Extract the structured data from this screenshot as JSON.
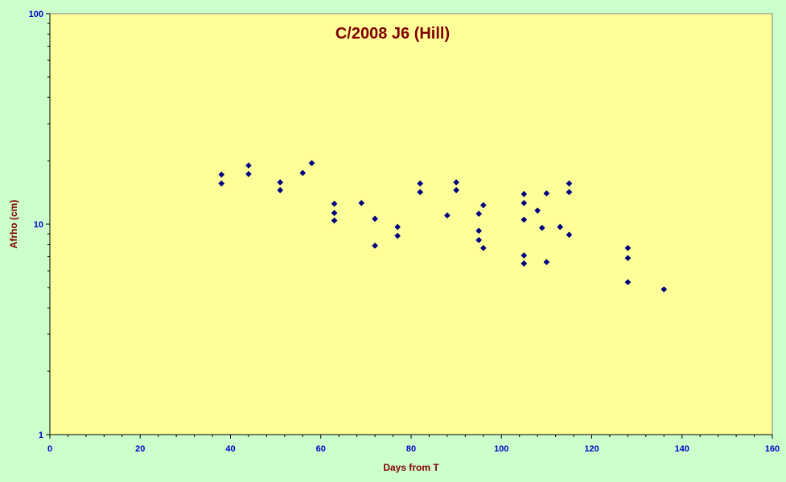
{
  "chart_data": {
    "type": "scatter",
    "title": "C/2008 J6 (Hill)",
    "xlabel": "Days from T",
    "ylabel": "Afrho (cm)",
    "xlim": [
      0,
      160
    ],
    "ylim": [
      1,
      100
    ],
    "yscale": "log",
    "x_ticks": [
      0,
      20,
      40,
      60,
      80,
      100,
      120,
      140,
      160
    ],
    "y_ticks": [
      1,
      10,
      100
    ],
    "x_tick_labels": [
      "0",
      "20",
      "40",
      "60",
      "80",
      "100",
      "120",
      "140",
      "160"
    ],
    "y_tick_labels": [
      "1",
      "10",
      "100"
    ],
    "grid": false,
    "colors": {
      "background": "#ccffcc",
      "plot_area": "#ffff99",
      "marker": "#000080",
      "title": "#800000",
      "tick_labels": "#0000cc"
    },
    "series": [
      {
        "x": [
          38,
          38,
          44,
          44,
          51,
          51,
          56,
          58,
          63,
          63,
          63,
          69,
          72,
          72,
          77,
          77,
          82,
          82,
          88,
          90,
          90,
          95,
          95,
          95,
          96,
          96,
          105,
          105,
          105,
          105,
          105,
          105,
          108,
          109,
          110,
          110,
          113,
          115,
          115,
          115,
          128,
          128,
          128,
          136
        ],
        "y": [
          17.2,
          15.6,
          19.0,
          17.3,
          15.8,
          14.5,
          17.5,
          19.5,
          12.5,
          11.3,
          10.4,
          12.6,
          10.6,
          7.9,
          9.7,
          8.8,
          15.6,
          14.2,
          11.0,
          15.8,
          14.5,
          11.2,
          9.3,
          8.4,
          12.3,
          7.7,
          13.9,
          12.6,
          10.5,
          7.1,
          6.5,
          6.5,
          11.6,
          9.6,
          14.0,
          6.6,
          9.7,
          15.6,
          14.2,
          8.9,
          7.7,
          6.9,
          5.3,
          4.9
        ]
      }
    ]
  }
}
